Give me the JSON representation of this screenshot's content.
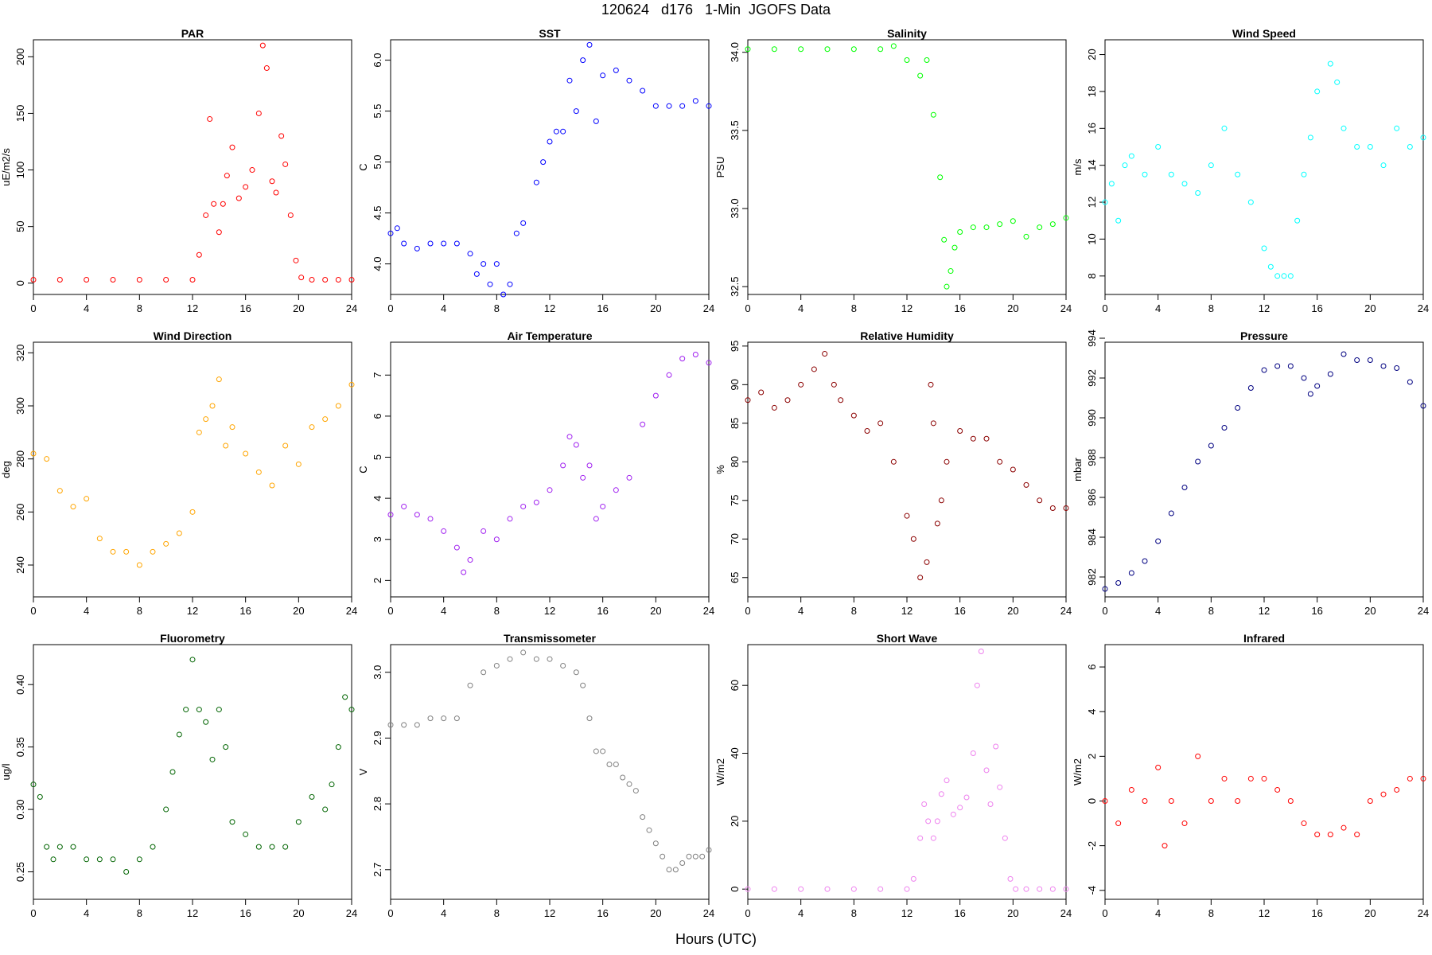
{
  "page_title": "120624   d176   1-Min  JGOFS Data",
  "xlabel": "Hours (UTC)",
  "chart_data": [
    {
      "type": "scatter",
      "title": "PAR",
      "ylabel": "uE/m2/s",
      "color": "#ff0000",
      "xlim": [
        0,
        24
      ],
      "ylim": [
        -10,
        215
      ],
      "xticks": [
        0,
        4,
        8,
        12,
        16,
        20,
        24
      ],
      "yticks": [
        0,
        50,
        100,
        150,
        200
      ],
      "x": [
        0,
        2,
        4,
        6,
        8,
        10,
        12,
        12.5,
        13,
        13.3,
        13.6,
        14,
        14.3,
        14.6,
        15,
        15.5,
        16,
        16.5,
        17,
        17.3,
        17.6,
        18,
        18.3,
        18.7,
        19,
        19.4,
        19.8,
        20.2,
        21,
        22,
        23,
        24
      ],
      "y": [
        3,
        3,
        3,
        3,
        3,
        3,
        3,
        25,
        60,
        145,
        70,
        45,
        70,
        95,
        120,
        75,
        85,
        100,
        150,
        210,
        190,
        90,
        80,
        130,
        105,
        60,
        20,
        5,
        3,
        3,
        3,
        3
      ]
    },
    {
      "type": "scatter",
      "title": "SST",
      "ylabel": "C",
      "color": "#0000ff",
      "xlim": [
        0,
        24
      ],
      "ylim": [
        3.7,
        6.2
      ],
      "xticks": [
        0,
        4,
        8,
        12,
        16,
        20,
        24
      ],
      "yticks": [
        4.0,
        4.5,
        5.0,
        5.5,
        6.0
      ],
      "ytickfmt": 1,
      "x": [
        0,
        0.5,
        1,
        2,
        3,
        4,
        5,
        6,
        6.5,
        7,
        7.5,
        8,
        8.5,
        9,
        9.5,
        10,
        11,
        11.5,
        12,
        12.5,
        13,
        13.5,
        14,
        14.5,
        15,
        15.5,
        16,
        17,
        18,
        19,
        20,
        21,
        22,
        23,
        24
      ],
      "y": [
        4.3,
        4.35,
        4.2,
        4.15,
        4.2,
        4.2,
        4.2,
        4.1,
        3.9,
        4.0,
        3.8,
        4.0,
        3.7,
        3.8,
        4.3,
        4.4,
        4.8,
        5.0,
        5.2,
        5.3,
        5.3,
        5.8,
        5.5,
        6.0,
        6.15,
        5.4,
        5.85,
        5.9,
        5.8,
        5.7,
        5.55,
        5.55,
        5.55,
        5.6,
        5.55
      ]
    },
    {
      "type": "scatter",
      "title": "Salinity",
      "ylabel": "PSU",
      "color": "#00ff00",
      "xlim": [
        0,
        24
      ],
      "ylim": [
        32.45,
        34.08
      ],
      "xticks": [
        0,
        4,
        8,
        12,
        16,
        20,
        24
      ],
      "yticks": [
        32.5,
        33.0,
        33.5,
        34.0
      ],
      "ytickfmt": 1,
      "x": [
        0,
        2,
        4,
        6,
        8,
        10,
        11,
        12,
        13,
        13.5,
        14,
        14.5,
        14.8,
        15,
        15.3,
        15.6,
        16,
        17,
        18,
        19,
        20,
        21,
        22,
        23,
        24
      ],
      "y": [
        34.02,
        34.02,
        34.02,
        34.02,
        34.02,
        34.02,
        34.04,
        33.95,
        33.85,
        33.95,
        33.6,
        33.2,
        32.8,
        32.5,
        32.6,
        32.75,
        32.85,
        32.88,
        32.88,
        32.9,
        32.92,
        32.82,
        32.88,
        32.9,
        32.94
      ]
    },
    {
      "type": "scatter",
      "title": "Wind Speed",
      "ylabel": "m/s",
      "color": "#00ffff",
      "xlim": [
        0,
        24
      ],
      "ylim": [
        7,
        20.8
      ],
      "xticks": [
        0,
        4,
        8,
        12,
        16,
        20,
        24
      ],
      "yticks": [
        8,
        10,
        12,
        14,
        16,
        18,
        20
      ],
      "x": [
        0,
        0.5,
        1,
        1.5,
        2,
        3,
        4,
        5,
        6,
        7,
        8,
        9,
        10,
        11,
        12,
        12.5,
        13,
        13.5,
        14,
        14.5,
        15,
        15.5,
        16,
        17,
        17.5,
        18,
        19,
        20,
        21,
        22,
        23,
        24
      ],
      "y": [
        12,
        13,
        11,
        14,
        14.5,
        13.5,
        15,
        13.5,
        13,
        12.5,
        14,
        16,
        13.5,
        12,
        9.5,
        8.5,
        8,
        8,
        8,
        11,
        13.5,
        15.5,
        18,
        19.5,
        18.5,
        16,
        15,
        15,
        14,
        16,
        15,
        15.5
      ]
    },
    {
      "type": "scatter",
      "title": "Wind Direction",
      "ylabel": "deg",
      "color": "#ffa500",
      "xlim": [
        0,
        24
      ],
      "ylim": [
        228,
        324
      ],
      "xticks": [
        0,
        4,
        8,
        12,
        16,
        20,
        24
      ],
      "yticks": [
        240,
        260,
        280,
        300,
        320
      ],
      "x": [
        0,
        1,
        2,
        3,
        4,
        5,
        6,
        7,
        8,
        9,
        10,
        11,
        12,
        12.5,
        13,
        13.5,
        14,
        14.5,
        15,
        16,
        17,
        18,
        19,
        20,
        21,
        22,
        23,
        24
      ],
      "y": [
        282,
        280,
        268,
        262,
        265,
        250,
        245,
        245,
        240,
        245,
        248,
        252,
        260,
        290,
        295,
        300,
        310,
        285,
        292,
        282,
        275,
        270,
        285,
        278,
        292,
        295,
        300,
        308
      ]
    },
    {
      "type": "scatter",
      "title": "Air Temperature",
      "ylabel": "C",
      "color": "#a020f0",
      "xlim": [
        0,
        24
      ],
      "ylim": [
        1.6,
        7.8
      ],
      "xticks": [
        0,
        4,
        8,
        12,
        16,
        20,
        24
      ],
      "yticks": [
        2,
        3,
        4,
        5,
        6,
        7
      ],
      "x": [
        0,
        1,
        2,
        3,
        4,
        5,
        5.5,
        6,
        7,
        8,
        9,
        10,
        11,
        12,
        13,
        13.5,
        14,
        14.5,
        15,
        15.5,
        16,
        17,
        18,
        19,
        20,
        21,
        22,
        23,
        24
      ],
      "y": [
        3.6,
        3.8,
        3.6,
        3.5,
        3.2,
        2.8,
        2.2,
        2.5,
        3.2,
        3.0,
        3.5,
        3.8,
        3.9,
        4.2,
        4.8,
        5.5,
        5.3,
        4.5,
        4.8,
        3.5,
        3.8,
        4.2,
        4.5,
        5.8,
        6.5,
        7.0,
        7.4,
        7.5,
        7.3
      ]
    },
    {
      "type": "scatter",
      "title": "Relative Humidity",
      "ylabel": "%",
      "color": "#8b0000",
      "xlim": [
        0,
        24
      ],
      "ylim": [
        62.5,
        95.5
      ],
      "xticks": [
        0,
        4,
        8,
        12,
        16,
        20,
        24
      ],
      "yticks": [
        65,
        70,
        75,
        80,
        85,
        90,
        95
      ],
      "x": [
        0,
        1,
        2,
        3,
        4,
        5,
        5.8,
        6.5,
        7,
        8,
        9,
        10,
        11,
        12,
        12.5,
        13,
        13.5,
        13.8,
        14,
        14.3,
        14.6,
        15,
        16,
        17,
        18,
        19,
        20,
        21,
        22,
        23,
        24
      ],
      "y": [
        88,
        89,
        87,
        88,
        90,
        92,
        94,
        90,
        88,
        86,
        84,
        85,
        80,
        73,
        70,
        65,
        67,
        90,
        85,
        72,
        75,
        80,
        84,
        83,
        83,
        80,
        79,
        77,
        75,
        74,
        74
      ]
    },
    {
      "type": "scatter",
      "title": "Pressure",
      "ylabel": "mbar",
      "color": "#000080",
      "xlim": [
        0,
        24
      ],
      "ylim": [
        981,
        993.8
      ],
      "xticks": [
        0,
        4,
        8,
        12,
        16,
        20,
        24
      ],
      "yticks": [
        982,
        984,
        986,
        988,
        990,
        992,
        994
      ],
      "x": [
        0,
        1,
        2,
        3,
        4,
        5,
        6,
        7,
        8,
        9,
        10,
        11,
        12,
        13,
        14,
        15,
        15.5,
        16,
        17,
        18,
        19,
        20,
        21,
        22,
        23,
        24
      ],
      "y": [
        981.4,
        981.7,
        982.2,
        982.8,
        983.8,
        985.2,
        986.5,
        987.8,
        988.6,
        989.5,
        990.5,
        991.5,
        992.4,
        992.6,
        992.6,
        992.0,
        991.2,
        991.6,
        992.2,
        993.2,
        992.9,
        992.9,
        992.6,
        992.5,
        991.8,
        990.6
      ]
    },
    {
      "type": "scatter",
      "title": "Fluorometry",
      "ylabel": "ug/l",
      "color": "#006400",
      "xlim": [
        0,
        24
      ],
      "ylim": [
        0.228,
        0.432
      ],
      "xticks": [
        0,
        4,
        8,
        12,
        16,
        20,
        24
      ],
      "yticks": [
        0.25,
        0.3,
        0.35,
        0.4
      ],
      "ytickfmt": 2,
      "x": [
        0,
        0.5,
        1,
        1.5,
        2,
        3,
        4,
        5,
        6,
        7,
        8,
        9,
        10,
        10.5,
        11,
        11.5,
        12,
        12.5,
        13,
        13.5,
        14,
        14.5,
        15,
        16,
        17,
        18,
        19,
        20,
        21,
        22,
        22.5,
        23,
        23.5,
        24
      ],
      "y": [
        0.32,
        0.31,
        0.27,
        0.26,
        0.27,
        0.27,
        0.26,
        0.26,
        0.26,
        0.25,
        0.26,
        0.27,
        0.3,
        0.33,
        0.36,
        0.38,
        0.42,
        0.38,
        0.37,
        0.34,
        0.38,
        0.35,
        0.29,
        0.28,
        0.27,
        0.27,
        0.27,
        0.29,
        0.31,
        0.3,
        0.32,
        0.35,
        0.39,
        0.38
      ]
    },
    {
      "type": "scatter",
      "title": "Transmissometer",
      "ylabel": "V",
      "color": "#808080",
      "xlim": [
        0,
        24
      ],
      "ylim": [
        2.655,
        3.042
      ],
      "xticks": [
        0,
        4,
        8,
        12,
        16,
        20,
        24
      ],
      "yticks": [
        2.7,
        2.8,
        2.9,
        3.0
      ],
      "ytickfmt": 1,
      "x": [
        0,
        1,
        2,
        3,
        4,
        5,
        6,
        7,
        8,
        9,
        10,
        11,
        12,
        13,
        14,
        14.5,
        15,
        15.5,
        16,
        16.5,
        17,
        17.5,
        18,
        18.5,
        19,
        19.5,
        20,
        20.5,
        21,
        21.5,
        22,
        22.5,
        23,
        23.5,
        24
      ],
      "y": [
        2.92,
        2.92,
        2.92,
        2.93,
        2.93,
        2.93,
        2.98,
        3.0,
        3.01,
        3.02,
        3.03,
        3.02,
        3.02,
        3.01,
        3.0,
        2.98,
        2.93,
        2.88,
        2.88,
        2.86,
        2.86,
        2.84,
        2.83,
        2.82,
        2.78,
        2.76,
        2.74,
        2.72,
        2.7,
        2.7,
        2.71,
        2.72,
        2.72,
        2.72,
        2.73
      ]
    },
    {
      "type": "scatter",
      "title": "Short Wave",
      "ylabel": "W/m2",
      "color": "#ee82ee",
      "xlim": [
        0,
        24
      ],
      "ylim": [
        -3,
        72
      ],
      "xticks": [
        0,
        4,
        8,
        12,
        16,
        20,
        24
      ],
      "yticks": [
        0,
        20,
        40,
        60
      ],
      "x": [
        0,
        2,
        4,
        6,
        8,
        10,
        12,
        12.5,
        13,
        13.3,
        13.6,
        14,
        14.3,
        14.6,
        15,
        15.5,
        16,
        16.5,
        17,
        17.3,
        17.6,
        18,
        18.3,
        18.7,
        19,
        19.4,
        19.8,
        20.2,
        21,
        22,
        23,
        24
      ],
      "y": [
        0,
        0,
        0,
        0,
        0,
        0,
        0,
        3,
        15,
        25,
        20,
        15,
        20,
        28,
        32,
        22,
        24,
        27,
        40,
        60,
        70,
        35,
        25,
        42,
        30,
        15,
        3,
        0,
        0,
        0,
        0,
        0
      ]
    },
    {
      "type": "scatter",
      "title": "Infrared",
      "ylabel": "W/m2",
      "color": "#ff0000",
      "xlim": [
        0,
        24
      ],
      "ylim": [
        -4.4,
        7
      ],
      "xticks": [
        0,
        4,
        8,
        12,
        16,
        20,
        24
      ],
      "yticks": [
        -4,
        -2,
        0,
        2,
        4,
        6
      ],
      "x": [
        0,
        1,
        2,
        3,
        4,
        4.5,
        5,
        6,
        7,
        8,
        9,
        10,
        11,
        12,
        13,
        14,
        15,
        16,
        17,
        18,
        19,
        20,
        21,
        22,
        23,
        24
      ],
      "y": [
        0,
        -1,
        0.5,
        0,
        1.5,
        -2,
        0,
        -1,
        2,
        0,
        1,
        0,
        1,
        1,
        0.5,
        0,
        -1,
        -1.5,
        -1.5,
        -1.2,
        -1.5,
        0,
        0.3,
        0.5,
        1,
        1
      ]
    }
  ]
}
